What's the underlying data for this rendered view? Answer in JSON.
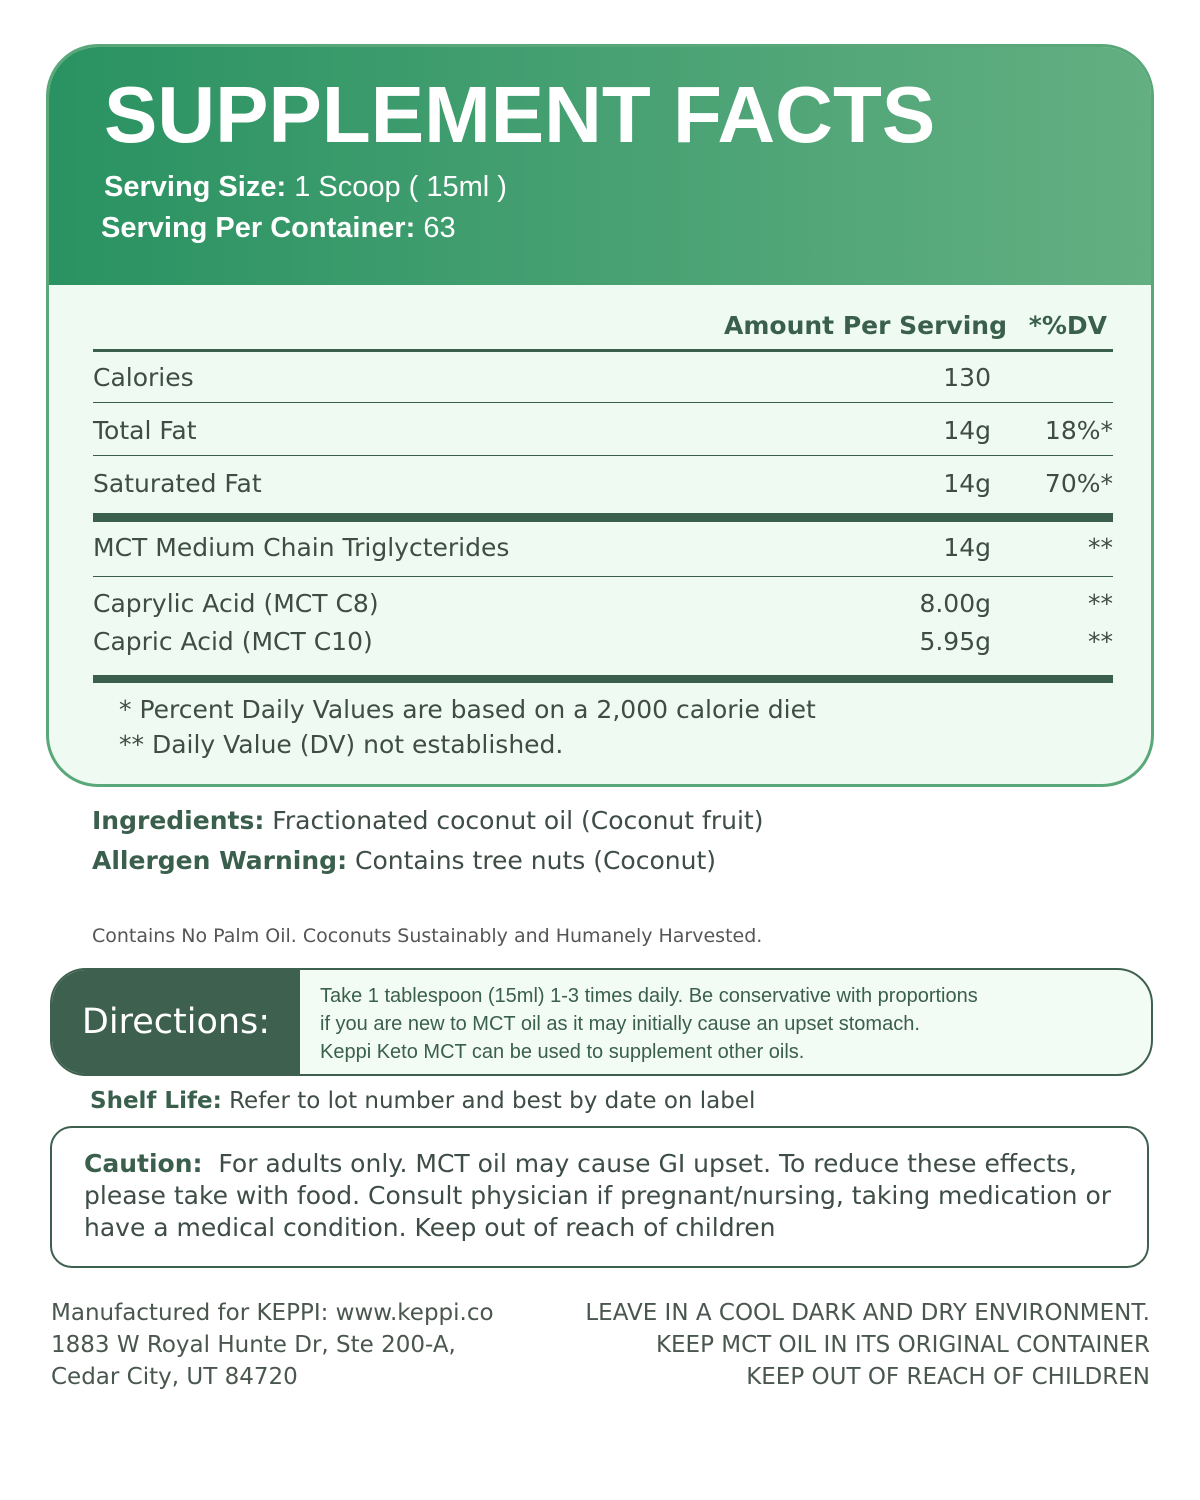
{
  "header": {
    "title": "SUPPLEMENT FACTS",
    "serving_size_label": "Serving Size:",
    "serving_size_value": "1 Scoop ( 15ml )",
    "servings_label": "Serving Per Container:",
    "servings_value": "63"
  },
  "table": {
    "amount_header": "Amount Per Serving",
    "dv_header": "*%DV",
    "rows": [
      {
        "name": "Calories",
        "amount": "130",
        "dv": ""
      },
      {
        "name": "Total Fat",
        "amount": "14g",
        "dv": "18%*"
      },
      {
        "name": "Saturated Fat",
        "amount": "14g",
        "dv": "70%*"
      },
      {
        "name": "MCT Medium Chain Triglycterides",
        "amount": "14g",
        "dv": "**"
      },
      {
        "name": "Caprylic Acid (MCT C8)",
        "amount": "8.00g",
        "dv": "**"
      },
      {
        "name": "Capric Acid (MCT C10)",
        "amount": "5.95g",
        "dv": "**"
      }
    ],
    "footnotes": [
      "* Percent Daily Values are based on a 2,000 calorie diet",
      "** Daily Value (DV) not established."
    ]
  },
  "ingredients": {
    "label": "Ingredients:",
    "value": "Fractionated coconut oil (Coconut fruit)"
  },
  "allergen": {
    "label": "Allergen Warning:",
    "value": "Contains tree nuts (Coconut)"
  },
  "note": "Contains No Palm Oil. Coconuts Sustainably and Humanely Harvested.",
  "directions": {
    "label": "Directions:",
    "lines": [
      "Take 1 tablespoon (15ml) 1-3 times daily. Be conservative with proportions",
      "if you are new to MCT oil as it may initially cause an upset stomach.",
      "Keppi Keto MCT can be used to supplement other oils."
    ]
  },
  "shelf_life": {
    "label": "Shelf Life:",
    "value": "Refer to lot number and best by date on label"
  },
  "caution": {
    "label": "Caution:",
    "value": "For adults only. MCT oil may cause GI upset. To reduce these effects, please take with food. Consult physician if pregnant/nursing, taking medication or have a medical condition. Keep out of reach of children"
  },
  "footer": {
    "left": [
      "Manufactured for KEPPI: www.keppi.co",
      "1883 W Royal Hunte Dr, Ste 200-A,",
      "Cedar City, UT 84720"
    ],
    "right": [
      "LEAVE  IN A COOL DARK AND DRY ENVIRONMENT.",
      "KEEP MCT OIL IN ITS ORIGINAL CONTAINER",
      "KEEP OUT OF REACH OF CHILDREN"
    ]
  },
  "colors": {
    "header_start": "#2a9262",
    "header_end": "#63af82",
    "panel_bg": "#effbf2",
    "dark_green": "#3d604f"
  }
}
